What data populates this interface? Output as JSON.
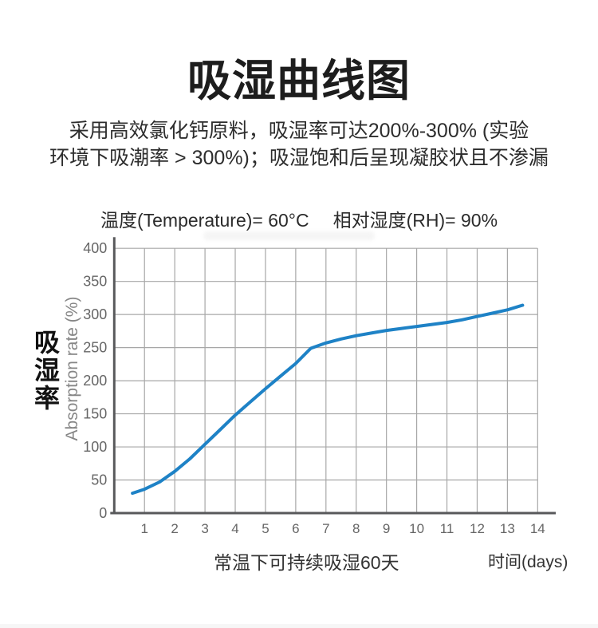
{
  "page": {
    "title": "吸湿曲线图",
    "subtitle_lines": [
      "采用高效氯化钙原料，吸湿率可达200%-300% (实验",
      "环境下吸潮率 > 300%)；吸湿饱和后呈现凝胶状且不渗漏"
    ],
    "conditions": {
      "temperature": "温度(Temperature)= 60°C",
      "humidity": "相对湿度(RH)= 90%"
    },
    "y_axis_title_cn": "吸湿率",
    "y_axis_title_en": "Absorption rate (%)",
    "x_axis_title": "时间(days)",
    "footer_note": "常温下可持续吸湿60天"
  },
  "colors": {
    "background": "#ffffff",
    "title": "#1d1d1d",
    "body_text": "#2d2d2d",
    "axis": "#58595b",
    "gridline": "#a7a7a7",
    "tick": "#666666",
    "curve": "#1e82c6",
    "footer": "#333333",
    "axis_label_en": "#868686"
  },
  "chart_data": {
    "type": "line",
    "title": "吸湿曲线图",
    "subtitle": "温度(Temperature)= 60°C  相对湿度(RH)= 90%",
    "xlabel": "时间(days)",
    "ylabel": "吸湿率 / Absorption rate (%)",
    "xlim": [
      0,
      14
    ],
    "ylim": [
      0,
      400
    ],
    "x_ticks": [
      1,
      2,
      3,
      4,
      5,
      6,
      7,
      8,
      9,
      10,
      11,
      12,
      13,
      14
    ],
    "y_ticks": [
      0,
      50,
      100,
      150,
      200,
      250,
      300,
      350,
      400
    ],
    "grid": true,
    "legend": false,
    "annotation": "常温下可持续吸湿60天",
    "series": [
      {
        "name": "absorption-rate",
        "color": "#1e82c6",
        "points": [
          [
            0.6,
            30
          ],
          [
            1,
            36
          ],
          [
            1.5,
            47
          ],
          [
            2,
            63
          ],
          [
            2.5,
            82
          ],
          [
            3,
            104
          ],
          [
            3.5,
            126
          ],
          [
            4,
            148
          ],
          [
            4.5,
            168
          ],
          [
            5,
            188
          ],
          [
            5.5,
            207
          ],
          [
            6,
            226
          ],
          [
            6.5,
            249
          ],
          [
            7,
            257
          ],
          [
            7.5,
            263
          ],
          [
            8,
            268
          ],
          [
            8.5,
            272
          ],
          [
            9,
            276
          ],
          [
            9.5,
            279
          ],
          [
            10,
            282
          ],
          [
            10.5,
            285
          ],
          [
            11,
            288
          ],
          [
            11.5,
            292
          ],
          [
            12,
            297
          ],
          [
            12.5,
            302
          ],
          [
            13,
            307
          ],
          [
            13.5,
            314
          ]
        ]
      }
    ]
  }
}
